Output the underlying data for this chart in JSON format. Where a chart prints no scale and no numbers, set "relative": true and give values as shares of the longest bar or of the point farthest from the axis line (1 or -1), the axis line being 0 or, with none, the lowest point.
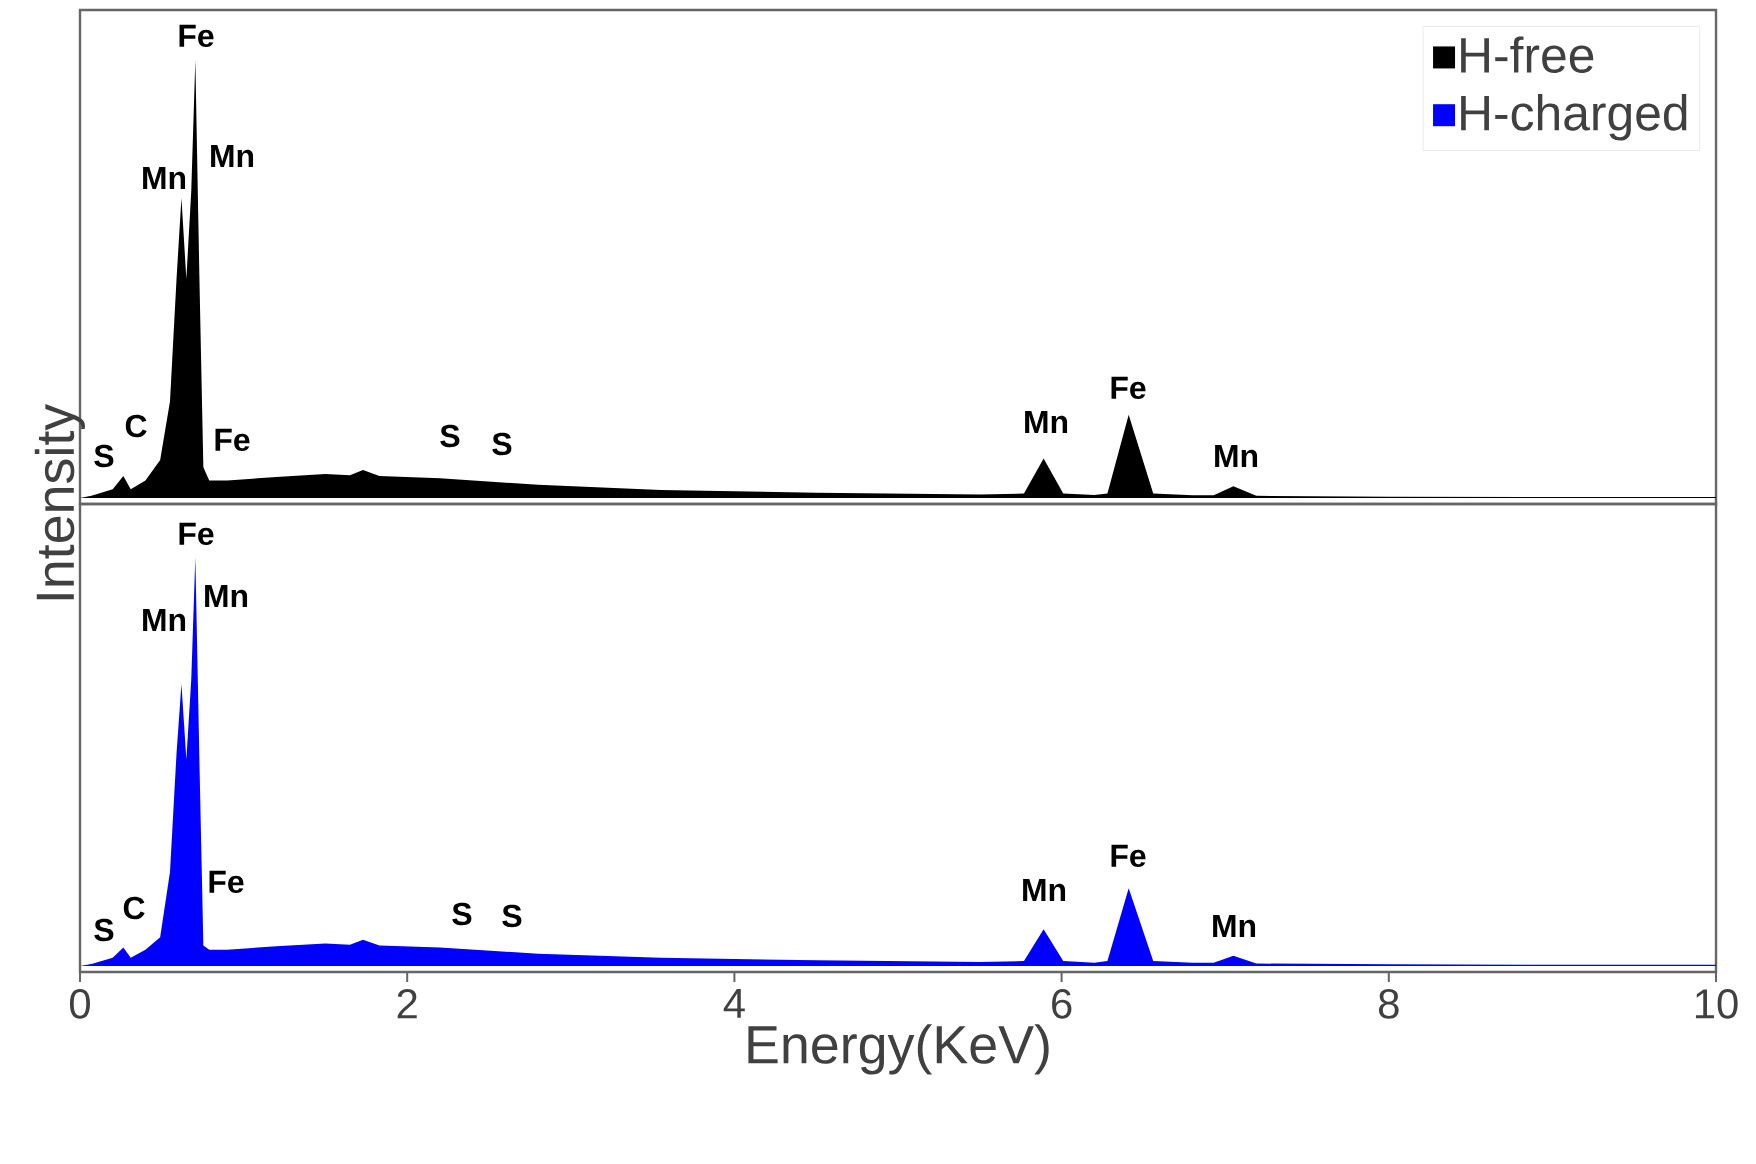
{
  "chart_data": [
    {
      "type": "area",
      "relative": true,
      "ylabel": "Intensity",
      "xlim": [
        0,
        10
      ],
      "tick_labels": false,
      "legend": "top right",
      "series": [
        {
          "name": "H-free",
          "color": "#000000",
          "x": [
            0,
            0.07,
            0.2,
            0.265,
            0.31,
            0.4,
            0.49,
            0.55,
            0.59,
            0.62,
            0.65,
            0.68,
            0.705,
            0.73,
            0.754,
            0.79,
            0.9,
            1.2,
            1.5,
            1.65,
            1.73,
            1.83,
            2.2,
            2.8,
            3.55,
            4.5,
            5.5,
            5.77,
            5.89,
            6.01,
            6.2,
            6.28,
            6.41,
            6.56,
            6.8,
            6.93,
            7.05,
            7.19,
            8,
            9,
            10
          ],
          "values": [
            0,
            0.005,
            0.02,
            0.05,
            0.02,
            0.04,
            0.087,
            0.22,
            0.5,
            0.685,
            0.5,
            0.7,
            1.0,
            0.5,
            0.07,
            0.04,
            0.04,
            0.048,
            0.055,
            0.052,
            0.064,
            0.05,
            0.045,
            0.03,
            0.018,
            0.012,
            0.008,
            0.01,
            0.09,
            0.01,
            0.007,
            0.01,
            0.19,
            0.01,
            0.006,
            0.006,
            0.027,
            0.005,
            0.003,
            0.002,
            0.002
          ]
        }
      ],
      "annotations": [
        "S",
        "C",
        "Mn",
        "Fe",
        "Mn",
        "Fe",
        "S",
        "S",
        "Mn",
        "Fe",
        "Mn"
      ]
    },
    {
      "type": "area",
      "relative": true,
      "xlabel": "Energy(KeV)",
      "xlim": [
        0,
        10
      ],
      "xticks": [
        0,
        2,
        4,
        6,
        8,
        10
      ],
      "tick_labels": "x",
      "series": [
        {
          "name": "H-charged",
          "color": "#0000ff",
          "x": [
            0,
            0.07,
            0.2,
            0.265,
            0.31,
            0.4,
            0.49,
            0.55,
            0.59,
            0.62,
            0.65,
            0.68,
            0.705,
            0.73,
            0.754,
            0.79,
            0.9,
            1.2,
            1.5,
            1.65,
            1.73,
            1.83,
            2.2,
            2.8,
            3.55,
            4.5,
            5.5,
            5.77,
            5.89,
            6.01,
            6.2,
            6.28,
            6.41,
            6.56,
            6.8,
            6.93,
            7.05,
            7.19,
            8,
            9,
            10
          ],
          "values": [
            0,
            0.005,
            0.02,
            0.045,
            0.02,
            0.04,
            0.07,
            0.23,
            0.52,
            0.69,
            0.505,
            0.7,
            1.0,
            0.5,
            0.05,
            0.04,
            0.04,
            0.048,
            0.055,
            0.052,
            0.064,
            0.05,
            0.045,
            0.03,
            0.02,
            0.014,
            0.01,
            0.012,
            0.09,
            0.012,
            0.008,
            0.012,
            0.19,
            0.012,
            0.008,
            0.008,
            0.025,
            0.006,
            0.004,
            0.003,
            0.003
          ]
        }
      ],
      "annotations": [
        "S",
        "C",
        "Mn",
        "Fe",
        "Mn",
        "Fe",
        "S",
        "S",
        "Mn",
        "Fe",
        "Mn"
      ]
    }
  ]
}
